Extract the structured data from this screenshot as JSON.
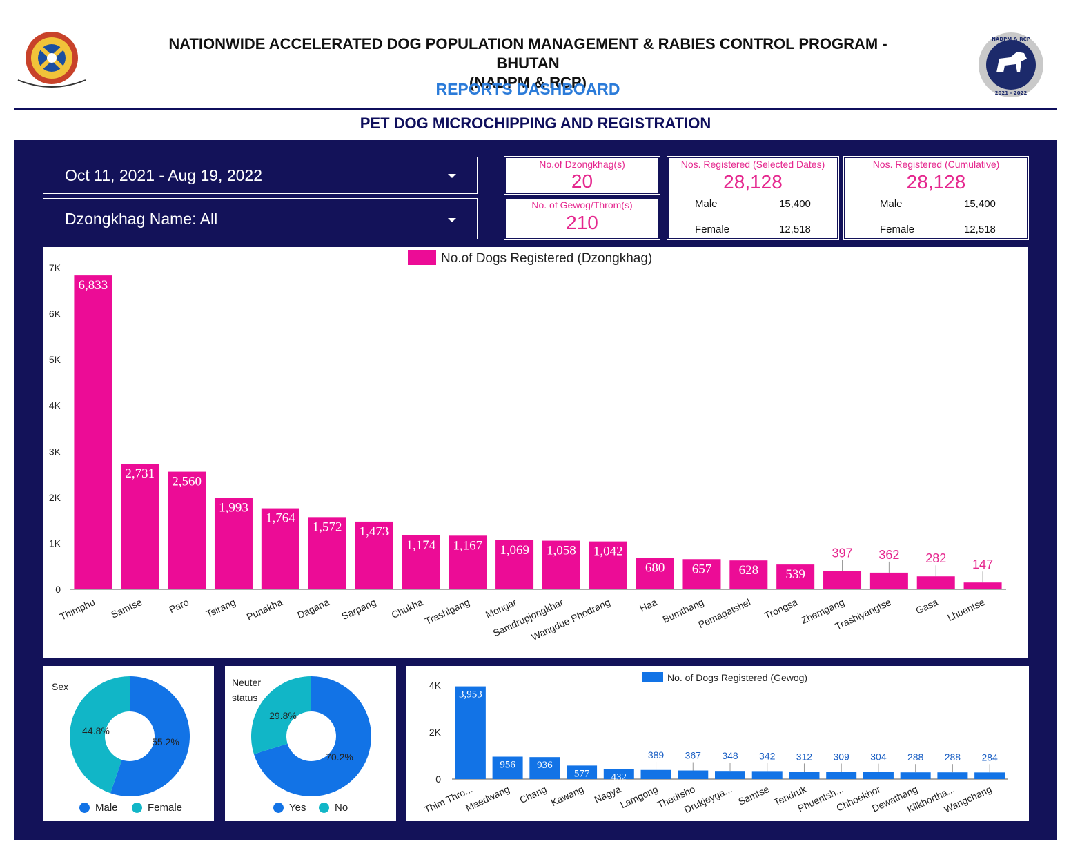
{
  "header": {
    "title_line1": "NATIONWIDE ACCELERATED DOG POPULATION MANAGEMENT & RABIES CONTROL PROGRAM - BHUTAN",
    "title_line2": "(NADPM & RCP)",
    "dashboard_title": "REPORTS DASHBOARD",
    "section_title": "PET DOG MICROCHIPPING AND REGISTRATION",
    "right_logo_top_text": "NADPM & RCP",
    "right_logo_bottom_text": "2021 - 2022"
  },
  "controls": {
    "date_range": "Oct 11, 2021 - Aug 19, 2022",
    "dzongkhag_filter": "Dzongkhag Name: All"
  },
  "kpis": {
    "dzongkhag_title": "No.of Dzongkhag(s)",
    "dzongkhag_value": "20",
    "gewog_title": "No. of Gewog/Throm(s)",
    "gewog_value": "210",
    "selected_title": "Nos. Registered (Selected Dates)",
    "selected_value": "28,128",
    "selected_male_label": "Male",
    "selected_male_value": "15,400",
    "selected_female_label": "Female",
    "selected_female_value": "12,518",
    "cumulative_title": "Nos. Registered (Cumulative)",
    "cumulative_value": "28,128",
    "cumulative_male_label": "Male",
    "cumulative_male_value": "15,400",
    "cumulative_female_label": "Female",
    "cumulative_female_value": "12,518"
  },
  "colors": {
    "navy": "#131259",
    "pink": "#ec0c96",
    "pink_text": "#e5278e",
    "blue": "#1273e6",
    "teal": "#11b6c7",
    "title_blue": "#2b7bd9"
  },
  "chart_data": [
    {
      "type": "bar",
      "legend": "No.of Dogs Registered (Dzongkhag)",
      "categories": [
        "Thimphu",
        "Samtse",
        "Paro",
        "Tsirang",
        "Punakha",
        "Dagana",
        "Sarpang",
        "Chukha",
        "Trashigang",
        "Mongar",
        "Samdrupjongkhar",
        "Wangdue Phodrang",
        "Haa",
        "Bumthang",
        "Pemagatshel",
        "Trongsa",
        "Zhemgang",
        "Trashiyangtse",
        "Gasa",
        "Lhuentse"
      ],
      "values": [
        6833,
        2731,
        2560,
        1993,
        1764,
        1572,
        1473,
        1174,
        1167,
        1069,
        1058,
        1042,
        680,
        657,
        628,
        539,
        397,
        362,
        282,
        147
      ],
      "data_labels": [
        "6,833",
        "2,731",
        "2,560",
        "1,993",
        "1,764",
        "1,572",
        "1,473",
        "1,174",
        "1,167",
        "1,069",
        "1,058",
        "1,042",
        "680",
        "657",
        "628",
        "539",
        "397",
        "362",
        "282",
        "147"
      ],
      "ylim": [
        0,
        7000
      ],
      "y_ticks": [
        0,
        1000,
        2000,
        3000,
        4000,
        5000,
        6000,
        7000
      ],
      "y_tick_labels": [
        "0",
        "1K",
        "2K",
        "3K",
        "4K",
        "5K",
        "6K",
        "7K"
      ],
      "legend_position": "top"
    },
    {
      "type": "pie",
      "title": "Sex",
      "labels": [
        "Male",
        "Female"
      ],
      "values": [
        55.2,
        44.8
      ],
      "value_labels": [
        "55.2%",
        "44.8%"
      ],
      "donut": true,
      "legend_position": "bottom"
    },
    {
      "type": "pie",
      "title": "Neuter status",
      "labels": [
        "Yes",
        "No"
      ],
      "values": [
        70.2,
        29.8
      ],
      "value_labels": [
        "70.2%",
        "29.8%"
      ],
      "donut": true,
      "legend_position": "bottom"
    },
    {
      "type": "bar",
      "legend": "No. of Dogs Registered (Gewog)",
      "categories": [
        "Thim Thro...",
        "Maedwang",
        "Chang",
        "Kawang",
        "Nagya",
        "Lamgong",
        "Thedtsho",
        "Drukjeyga...",
        "Samtse",
        "Tendruk",
        "Phuentsh...",
        "Chhoekhor",
        "Dewathang",
        "Kilkhortha...",
        "Wangchang"
      ],
      "values": [
        3953,
        956,
        936,
        577,
        432,
        389,
        367,
        348,
        342,
        312,
        309,
        304,
        288,
        288,
        284
      ],
      "data_labels": [
        "3,953",
        "956",
        "936",
        "577",
        "432",
        "389",
        "367",
        "348",
        "342",
        "312",
        "309",
        "304",
        "288",
        "288",
        "284"
      ],
      "ylim": [
        0,
        4000
      ],
      "y_ticks": [
        0,
        2000,
        4000
      ],
      "y_tick_labels": [
        "0",
        "2K",
        "4K"
      ],
      "legend_position": "top"
    }
  ]
}
